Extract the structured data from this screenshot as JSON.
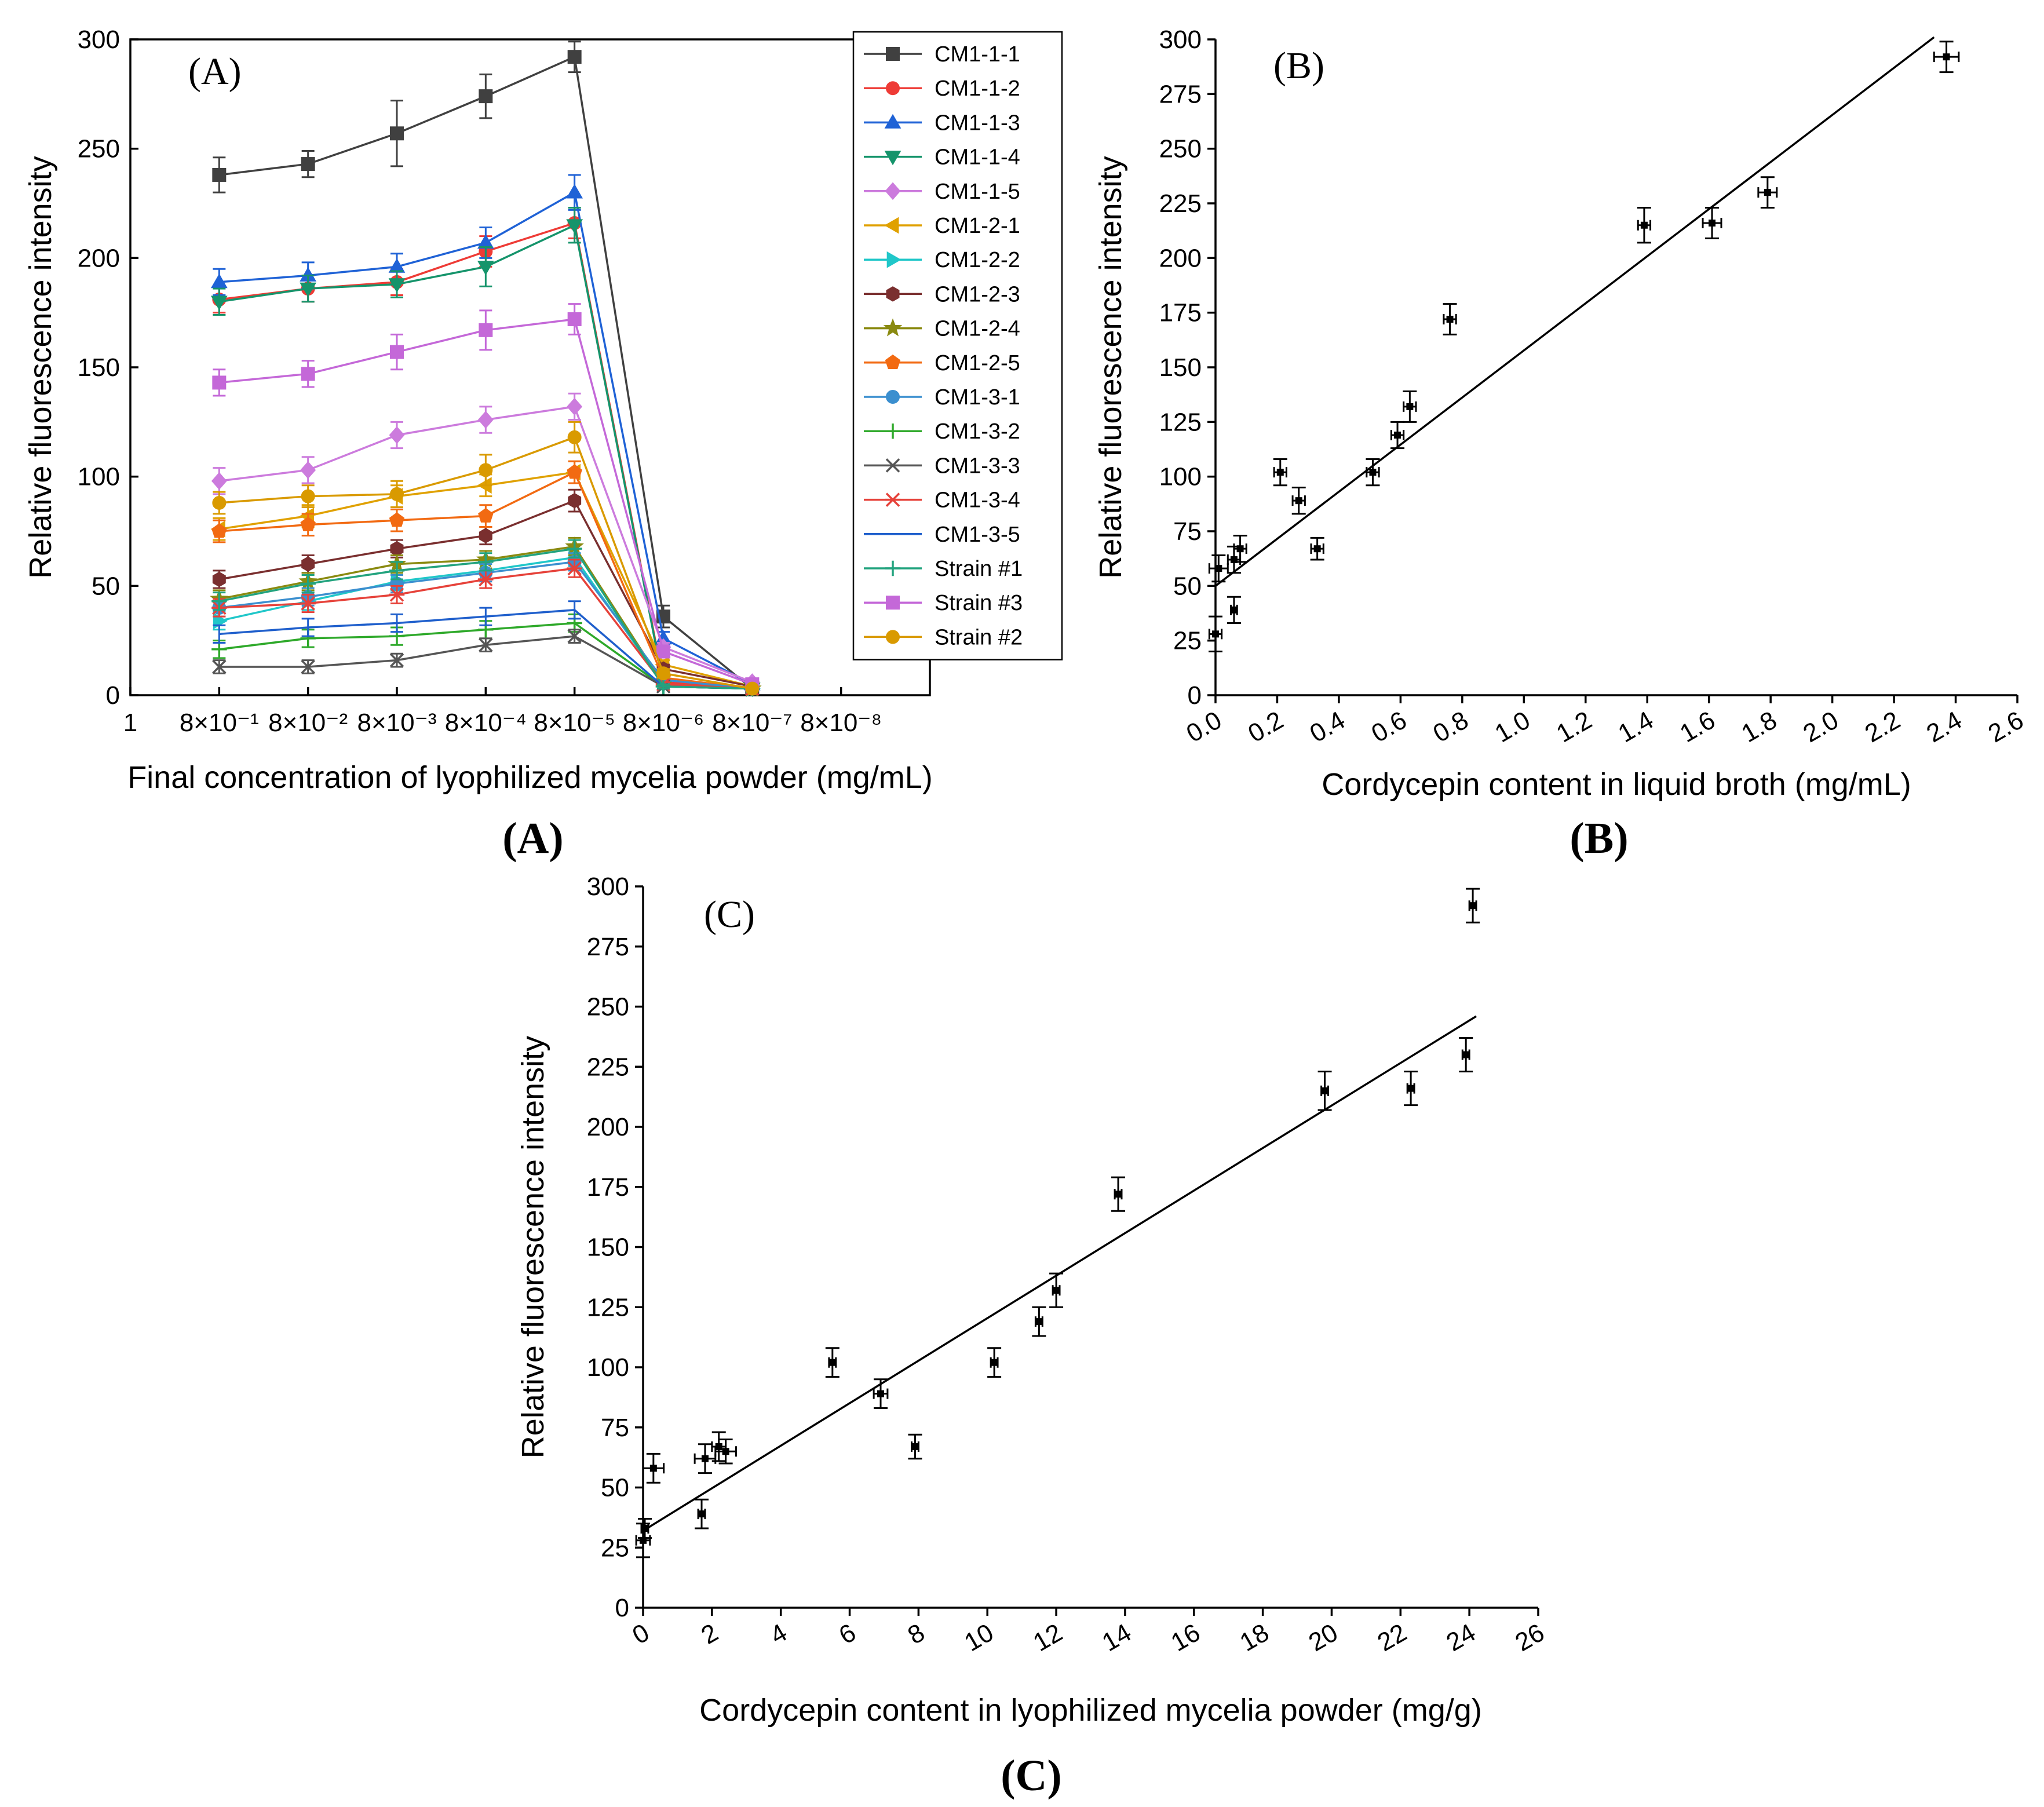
{
  "chart_data": [
    {
      "panel": "A",
      "type": "line",
      "label": "(A)",
      "caption": "(A)",
      "xlabel": "Final concentration of lyophilized mycelia powder (mg/mL)",
      "ylabel": "Relative fluorescence intensity",
      "categories": [
        "1",
        "8×10⁻¹",
        "8×10⁻²",
        "8×10⁻³",
        "8×10⁻⁴",
        "8×10⁻⁵",
        "8×10⁻⁶",
        "8×10⁻⁷",
        "8×10⁻⁸"
      ],
      "ylim": [
        0,
        300
      ],
      "yticks": [
        0,
        50,
        100,
        150,
        200,
        250,
        300
      ],
      "legend_position": "right",
      "series": [
        {
          "name": "CM1-1-1",
          "color": "#404040",
          "marker": "square",
          "values": [
            null,
            238,
            243,
            257,
            274,
            292,
            36,
            3,
            null
          ],
          "err": [
            8,
            6,
            15,
            10,
            7,
            5,
            1
          ]
        },
        {
          "name": "CM1-1-2",
          "color": "#ee3b36",
          "marker": "circle",
          "values": [
            null,
            181,
            186,
            189,
            203,
            216,
            6,
            3,
            null
          ],
          "err": [
            6,
            6,
            6,
            7,
            7,
            2,
            1
          ]
        },
        {
          "name": "CM1-1-3",
          "color": "#1f62d6",
          "marker": "triangle-up",
          "values": [
            null,
            189,
            192,
            196,
            207,
            230,
            26,
            5,
            null
          ],
          "err": [
            6,
            6,
            6,
            7,
            8,
            3,
            1
          ]
        },
        {
          "name": "CM1-1-4",
          "color": "#15946b",
          "marker": "triangle-down",
          "values": [
            null,
            180,
            186,
            188,
            196,
            215,
            5,
            3,
            null
          ],
          "err": [
            6,
            6,
            6,
            9,
            8,
            2,
            1
          ]
        },
        {
          "name": "CM1-1-5",
          "color": "#cc7bdd",
          "marker": "diamond",
          "values": [
            null,
            98,
            103,
            119,
            126,
            132,
            22,
            6,
            null
          ],
          "err": [
            6,
            6,
            6,
            6,
            6,
            2,
            1
          ]
        },
        {
          "name": "CM1-2-1",
          "color": "#e0a100",
          "marker": "triangle-left",
          "values": [
            null,
            76,
            82,
            91,
            96,
            102,
            14,
            4,
            null
          ],
          "err": [
            5,
            5,
            5,
            5,
            5,
            2,
            1
          ]
        },
        {
          "name": "CM1-2-2",
          "color": "#20c7c9",
          "marker": "triangle-right",
          "values": [
            null,
            34,
            43,
            52,
            57,
            63,
            5,
            3,
            null
          ],
          "err": [
            4,
            4,
            4,
            4,
            4,
            1,
            1
          ]
        },
        {
          "name": "CM1-2-3",
          "color": "#7a2f2f",
          "marker": "hexagon",
          "values": [
            null,
            53,
            60,
            67,
            73,
            89,
            12,
            4,
            null
          ],
          "err": [
            4,
            4,
            4,
            4,
            5,
            2,
            1
          ]
        },
        {
          "name": "CM1-2-4",
          "color": "#8a8a10",
          "marker": "star",
          "values": [
            null,
            44,
            52,
            60,
            62,
            68,
            5,
            3,
            null
          ],
          "err": [
            4,
            4,
            4,
            4,
            4,
            1,
            1
          ]
        },
        {
          "name": "CM1-2-5",
          "color": "#f26a12",
          "marker": "pentagon",
          "values": [
            null,
            75,
            78,
            80,
            82,
            102,
            8,
            3,
            null
          ],
          "err": [
            5,
            5,
            5,
            5,
            5,
            2,
            1
          ]
        },
        {
          "name": "CM1-3-1",
          "color": "#3b8fcf",
          "marker": "circle",
          "values": [
            null,
            40,
            45,
            51,
            56,
            61,
            7,
            3,
            null
          ],
          "err": [
            4,
            4,
            4,
            4,
            4,
            1,
            1
          ]
        },
        {
          "name": "CM1-3-2",
          "color": "#2ea92a",
          "marker": "plus",
          "values": [
            null,
            21,
            26,
            27,
            30,
            33,
            4,
            3,
            null
          ],
          "err": [
            4,
            4,
            4,
            4,
            4,
            1,
            1
          ]
        },
        {
          "name": "CM1-3-3",
          "color": "#555555",
          "marker": "x",
          "values": [
            null,
            13,
            13,
            16,
            23,
            27,
            4,
            3,
            null
          ],
          "err": [
            3,
            3,
            3,
            3,
            3,
            1,
            1
          ]
        },
        {
          "name": "CM1-3-4",
          "color": "#e6423a",
          "marker": "asterisk",
          "values": [
            null,
            40,
            42,
            46,
            53,
            58,
            5,
            3,
            null
          ],
          "err": [
            4,
            4,
            4,
            4,
            4,
            1,
            1
          ]
        },
        {
          "name": "CM1-3-5",
          "color": "#1f5fcc",
          "marker": "none",
          "values": [
            null,
            28,
            31,
            33,
            36,
            39,
            4,
            3,
            null
          ],
          "err": [
            4,
            4,
            4,
            4,
            4,
            1,
            1
          ]
        },
        {
          "name": "Strain #1",
          "color": "#22a37e",
          "marker": "plus",
          "values": [
            null,
            43,
            51,
            57,
            61,
            67,
            4,
            3,
            null
          ],
          "err": [
            4,
            4,
            4,
            4,
            4,
            1,
            1
          ]
        },
        {
          "name": "Strain #3",
          "color": "#c468d8",
          "marker": "square",
          "values": [
            null,
            143,
            147,
            157,
            167,
            172,
            20,
            5,
            null
          ],
          "err": [
            6,
            6,
            8,
            9,
            7,
            2,
            1
          ]
        },
        {
          "name": "Strain #2",
          "color": "#d99a00",
          "marker": "circle",
          "values": [
            null,
            88,
            91,
            92,
            103,
            118,
            10,
            3,
            null
          ],
          "err": [
            5,
            5,
            6,
            7,
            7,
            2,
            1
          ]
        }
      ]
    },
    {
      "panel": "B",
      "type": "scatter",
      "label": "(B)",
      "caption": "(B)",
      "xlabel": "Cordycepin content in liquid broth (mg/mL)",
      "ylabel": "Relative fluorescence intensity",
      "xlim": [
        0,
        2.6
      ],
      "ylim": [
        0,
        300
      ],
      "xticks": [
        "0.0",
        "0.2",
        "0.4",
        "0.6",
        "0.8",
        "1.0",
        "1.2",
        "1.4",
        "1.6",
        "1.8",
        "2.0",
        "2.2",
        "2.4",
        "2.6"
      ],
      "yticks": [
        0,
        25,
        50,
        75,
        100,
        125,
        150,
        175,
        200,
        225,
        250,
        275,
        300
      ],
      "points": [
        {
          "x": 0.0,
          "y": 28,
          "yerr": 8,
          "xerr": 0.02
        },
        {
          "x": 0.01,
          "y": 58,
          "yerr": 6,
          "xerr": 0.03
        },
        {
          "x": 0.06,
          "y": 39,
          "yerr": 6,
          "xerr": 0.01
        },
        {
          "x": 0.06,
          "y": 62,
          "yerr": 6,
          "xerr": 0.02
        },
        {
          "x": 0.08,
          "y": 67,
          "yerr": 6,
          "xerr": 0.02
        },
        {
          "x": 0.21,
          "y": 102,
          "yerr": 6,
          "xerr": 0.02
        },
        {
          "x": 0.27,
          "y": 89,
          "yerr": 6,
          "xerr": 0.02
        },
        {
          "x": 0.33,
          "y": 67,
          "yerr": 5,
          "xerr": 0.02
        },
        {
          "x": 0.51,
          "y": 102,
          "yerr": 6,
          "xerr": 0.02
        },
        {
          "x": 0.59,
          "y": 119,
          "yerr": 6,
          "xerr": 0.02
        },
        {
          "x": 0.63,
          "y": 132,
          "yerr": 7,
          "xerr": 0.02
        },
        {
          "x": 0.76,
          "y": 172,
          "yerr": 7,
          "xerr": 0.02
        },
        {
          "x": 1.39,
          "y": 215,
          "yerr": 8,
          "xerr": 0.02
        },
        {
          "x": 1.61,
          "y": 216,
          "yerr": 7,
          "xerr": 0.03
        },
        {
          "x": 1.79,
          "y": 230,
          "yerr": 7,
          "xerr": 0.03
        },
        {
          "x": 2.37,
          "y": 292,
          "yerr": 7,
          "xerr": 0.04
        }
      ],
      "fit": {
        "x": [
          0.0,
          2.33
        ],
        "y": [
          50,
          301
        ]
      }
    },
    {
      "panel": "C",
      "type": "scatter",
      "label": "(C)",
      "caption": "(C)",
      "xlabel": "Cordycepin content in lyophilized mycelia powder (mg/g)",
      "ylabel": "Relative fluorescence intensity",
      "xlim": [
        0,
        26
      ],
      "ylim": [
        0,
        300
      ],
      "xticks": [
        "0",
        "2",
        "4",
        "6",
        "8",
        "10",
        "12",
        "14",
        "16",
        "18",
        "20",
        "22",
        "24",
        "26"
      ],
      "yticks": [
        0,
        25,
        50,
        75,
        100,
        125,
        150,
        175,
        200,
        225,
        250,
        275,
        300
      ],
      "points": [
        {
          "x": 0.0,
          "y": 28,
          "yerr": 7,
          "xerr": 0.2
        },
        {
          "x": 0.05,
          "y": 33,
          "yerr": 4,
          "xerr": 0.1
        },
        {
          "x": 0.3,
          "y": 58,
          "yerr": 6,
          "xerr": 0.3
        },
        {
          "x": 1.7,
          "y": 39,
          "yerr": 6,
          "xerr": 0.1
        },
        {
          "x": 1.8,
          "y": 62,
          "yerr": 6,
          "xerr": 0.3
        },
        {
          "x": 2.2,
          "y": 67,
          "yerr": 6,
          "xerr": 0.2
        },
        {
          "x": 2.4,
          "y": 65,
          "yerr": 5,
          "xerr": 0.3
        },
        {
          "x": 5.5,
          "y": 102,
          "yerr": 6,
          "xerr": 0.1
        },
        {
          "x": 6.9,
          "y": 89,
          "yerr": 6,
          "xerr": 0.2
        },
        {
          "x": 7.9,
          "y": 67,
          "yerr": 5,
          "xerr": 0.1
        },
        {
          "x": 10.2,
          "y": 102,
          "yerr": 6,
          "xerr": 0.1
        },
        {
          "x": 11.5,
          "y": 119,
          "yerr": 6,
          "xerr": 0.1
        },
        {
          "x": 12.0,
          "y": 132,
          "yerr": 7,
          "xerr": 0.1
        },
        {
          "x": 13.8,
          "y": 172,
          "yerr": 7,
          "xerr": 0.1
        },
        {
          "x": 19.8,
          "y": 215,
          "yerr": 8,
          "xerr": 0.1
        },
        {
          "x": 22.3,
          "y": 216,
          "yerr": 7,
          "xerr": 0.1
        },
        {
          "x": 23.9,
          "y": 230,
          "yerr": 7,
          "xerr": 0.1
        },
        {
          "x": 24.1,
          "y": 292,
          "yerr": 7,
          "xerr": 0.1
        }
      ],
      "fit": {
        "x": [
          0.0,
          24.2
        ],
        "y": [
          32,
          246
        ]
      }
    }
  ]
}
